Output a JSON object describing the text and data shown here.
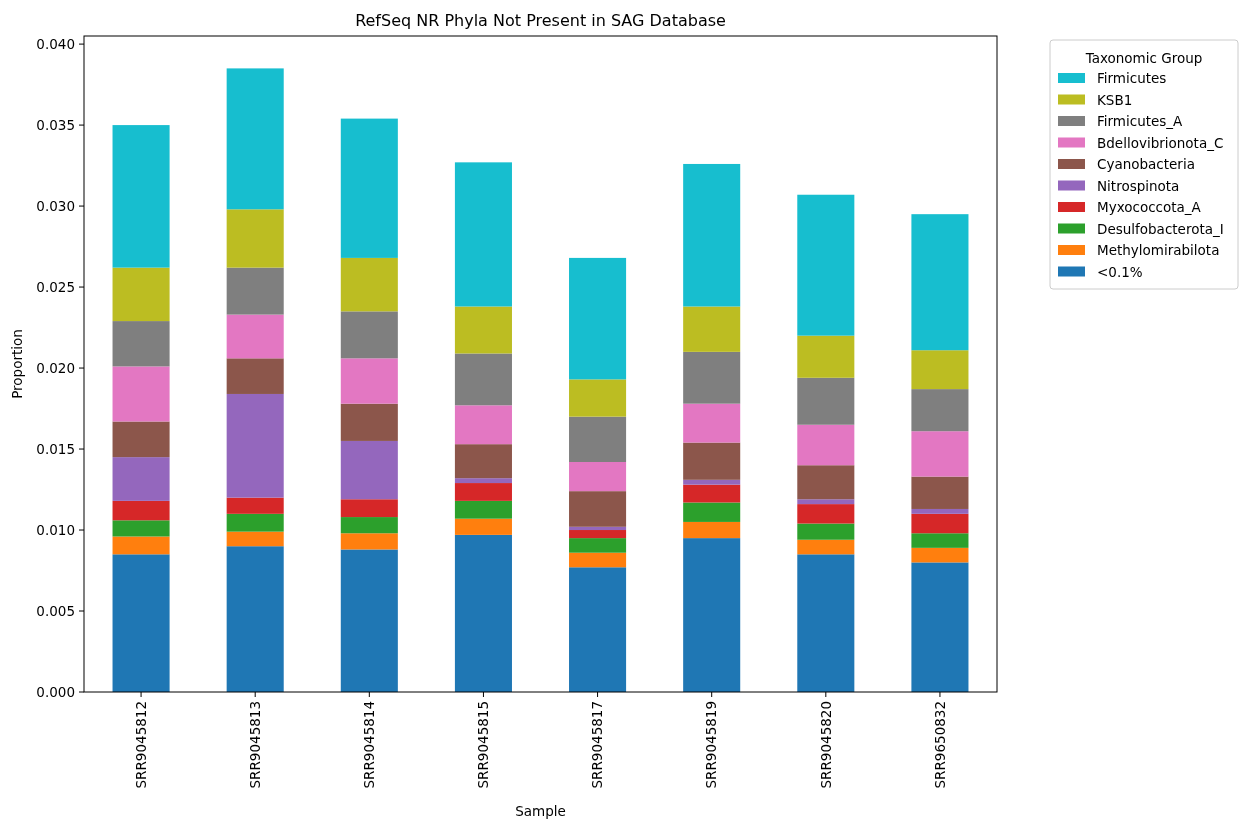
{
  "chart_data": {
    "type": "bar",
    "stacked": true,
    "title": "RefSeq NR Phyla Not Present in SAG Database",
    "xlabel": "Sample",
    "ylabel": "Proportion",
    "legend_title": "Taxonomic Group",
    "legend": "top right",
    "grid": false,
    "categories": [
      "SRR9045812",
      "SRR9045813",
      "SRR9045814",
      "SRR9045815",
      "SRR9045817",
      "SRR9045819",
      "SRR9045820",
      "SRR9650832"
    ],
    "ylim": [
      0,
      0.0405
    ],
    "yticks": [
      {
        "value": 0,
        "label": "0.000"
      },
      {
        "value": 0.005,
        "label": "0.005"
      },
      {
        "value": 0.01,
        "label": "0.010"
      },
      {
        "value": 0.015,
        "label": "0.015"
      },
      {
        "value": 0.02,
        "label": "0.020"
      },
      {
        "value": 0.025,
        "label": "0.025"
      },
      {
        "value": 0.03,
        "label": "0.030"
      },
      {
        "value": 0.035,
        "label": "0.035"
      },
      {
        "value": 0.04,
        "label": "0.040"
      }
    ],
    "series": [
      {
        "name": "<0.1%",
        "color": "#1f77b4",
        "values": [
          0.0085,
          0.009,
          0.0088,
          0.0097,
          0.0077,
          0.0095,
          0.0085,
          0.008
        ]
      },
      {
        "name": "Methylomirabilota",
        "color": "#ff7f0e",
        "values": [
          0.0011,
          0.0009,
          0.001,
          0.001,
          0.0009,
          0.001,
          0.0009,
          0.0009
        ]
      },
      {
        "name": "Desulfobacterota_I",
        "color": "#2ca02c",
        "values": [
          0.001,
          0.0011,
          0.001,
          0.0011,
          0.0009,
          0.0012,
          0.001,
          0.0009
        ]
      },
      {
        "name": "Myxococcota_A",
        "color": "#d62728",
        "values": [
          0.0012,
          0.001,
          0.0011,
          0.0011,
          0.0005,
          0.0011,
          0.0012,
          0.0012
        ]
      },
      {
        "name": "Nitrospinota",
        "color": "#9467bd",
        "values": [
          0.0027,
          0.0064,
          0.0036,
          0.0003,
          0.0002,
          0.0003,
          0.0003,
          0.0003
        ]
      },
      {
        "name": "Cyanobacteria",
        "color": "#8c564b",
        "values": [
          0.0022,
          0.0022,
          0.0023,
          0.0021,
          0.0022,
          0.0023,
          0.0021,
          0.002
        ]
      },
      {
        "name": "Bdellovibrionota_C",
        "color": "#e377c2",
        "values": [
          0.0034,
          0.0027,
          0.0028,
          0.0024,
          0.0018,
          0.0024,
          0.0025,
          0.0028
        ]
      },
      {
        "name": "Firmicutes_A",
        "color": "#7f7f7f",
        "values": [
          0.0028,
          0.0029,
          0.0029,
          0.0032,
          0.0028,
          0.0032,
          0.0029,
          0.0026
        ]
      },
      {
        "name": "KSB1",
        "color": "#bcbd22",
        "values": [
          0.0033,
          0.0036,
          0.0033,
          0.0029,
          0.0023,
          0.0028,
          0.0026,
          0.0024
        ]
      },
      {
        "name": "Firmicutes",
        "color": "#17becf",
        "values": [
          0.0088,
          0.0087,
          0.0086,
          0.0089,
          0.0075,
          0.0088,
          0.0087,
          0.0084
        ]
      }
    ]
  }
}
